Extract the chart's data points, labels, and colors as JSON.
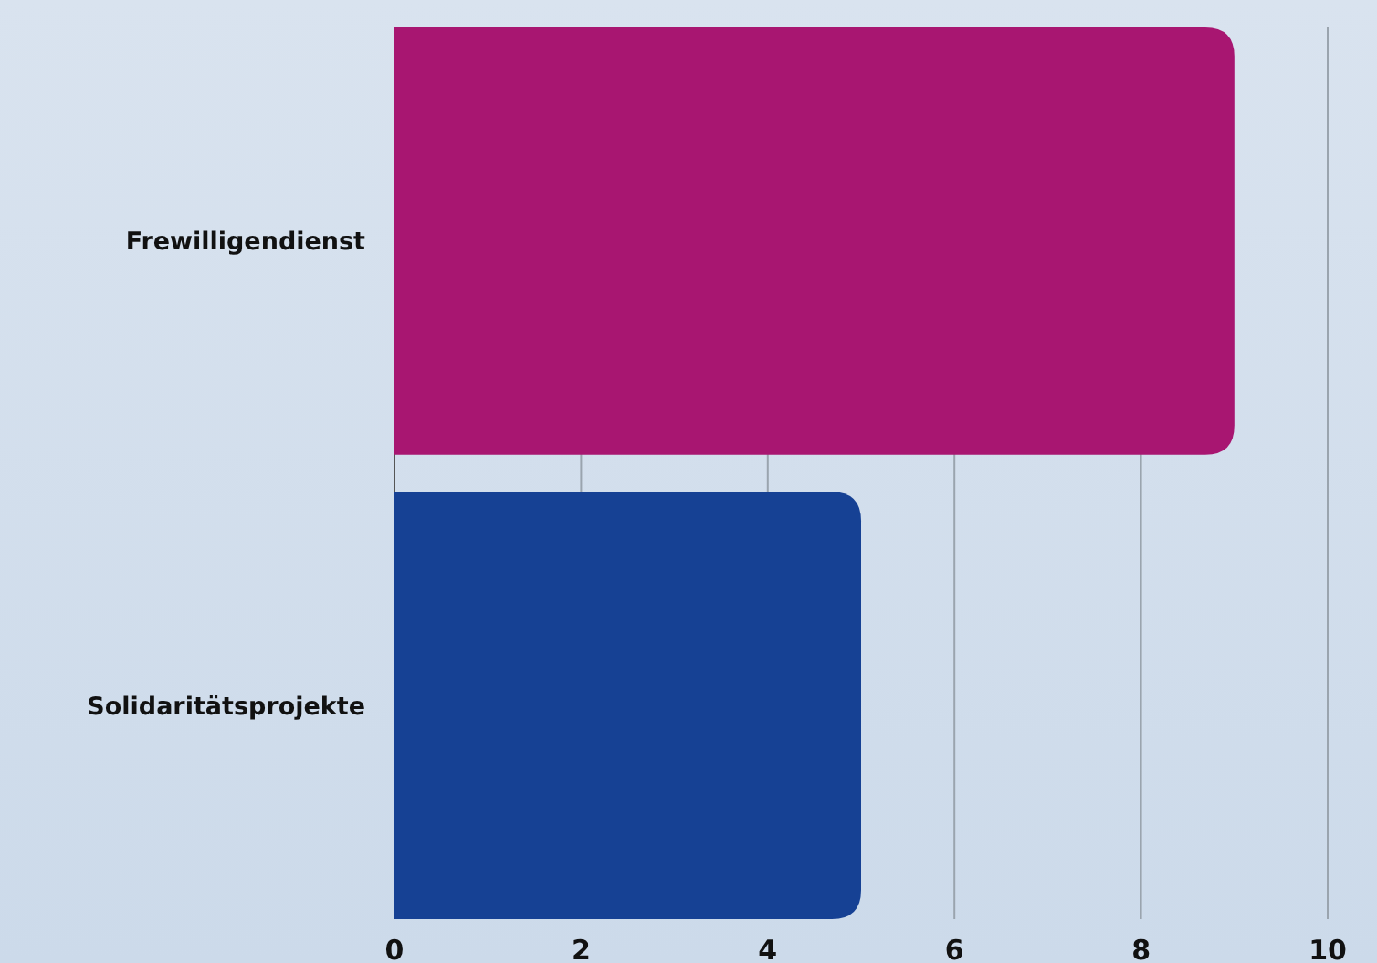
{
  "chart_data": {
    "type": "bar",
    "orientation": "horizontal",
    "categories": [
      "Frewilligendienst",
      "Solidaritätsprojekte"
    ],
    "colors": [
      "#a81671",
      "#164194"
    ],
    "values": [
      9,
      5
    ],
    "xlim": [
      0,
      10
    ],
    "xticks": [
      0,
      2,
      4,
      6,
      8,
      10
    ],
    "grid": "x"
  }
}
